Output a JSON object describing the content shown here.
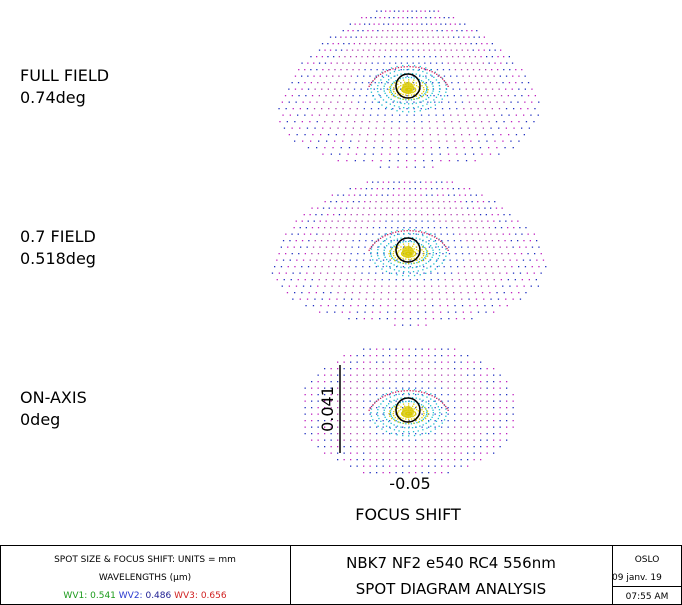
{
  "fields": [
    {
      "name": "FULL FIELD",
      "angle": "0.74deg"
    },
    {
      "name": "0.7 FIELD",
      "angle": "0.518deg"
    },
    {
      "name": "ON-AXIS",
      "angle": "0deg"
    }
  ],
  "scale": {
    "spot_size": "0.041",
    "focus_shift": "-0.05",
    "axis_title": "FOCUS SHIFT"
  },
  "footer": {
    "units": "SPOT SIZE & FOCUS SHIFT: UNITS = mm",
    "wavelengths_title": "WAVELENGTHS (µm)",
    "wavelengths": [
      {
        "label": "WV1:",
        "value": "0.541"
      },
      {
        "label": "WV2:",
        "value": "0.486"
      },
      {
        "label": "WV3:",
        "value": "0.656"
      }
    ],
    "lens": "NBK7 NF2 e540 RC4 556nm",
    "analysis": "SPOT DIAGRAM ANALYSIS",
    "program": "OSLO",
    "date": "09 janv. 19",
    "time": "07:55 AM"
  }
}
